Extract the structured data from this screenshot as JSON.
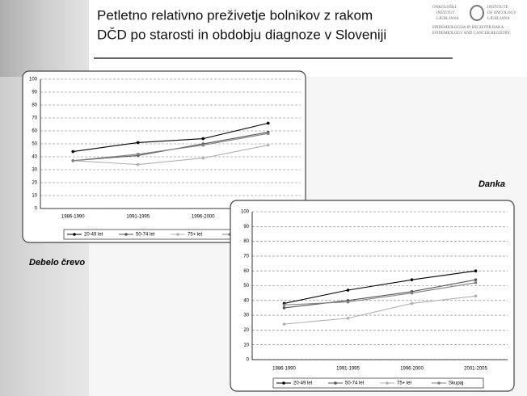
{
  "title_lines": [
    "Petletno relativno preživetje bolnikov z rakom",
    "DČD po starosti in obdobju diagnoze v Sloveniji"
  ],
  "logo": {
    "left": [
      "ONKOLOŠKI",
      "INŠTITUT",
      "LJUBLJANA"
    ],
    "right": [
      "INSTITUTE",
      "OF ONCOLOGY",
      "LJUBLJANA"
    ],
    "bottom": [
      "EPIDEMIOLOGIJA IN REGISTER RAKA",
      "EPIDEMIOLOGY AND CANCER REGISTRY"
    ]
  },
  "chart_data": [
    {
      "type": "line",
      "title": "Debelo črevo",
      "categories": [
        "1986-1990",
        "1991-1995",
        "1996-2000",
        "2001-2005"
      ],
      "series": [
        {
          "name": "20-49 let",
          "color": "#000000",
          "values": [
            44,
            51,
            54,
            66
          ]
        },
        {
          "name": "50-74 let",
          "color": "#555555",
          "values": [
            37,
            41,
            50,
            59
          ]
        },
        {
          "name": "75+ let",
          "color": "#b0b0b0",
          "values": [
            37,
            34,
            39,
            49
          ]
        },
        {
          "name": "Skupaj",
          "color": "#808080",
          "values": [
            37,
            42,
            49,
            58
          ]
        }
      ],
      "ylim": [
        0,
        100
      ],
      "yticks": [
        0,
        10,
        20,
        30,
        40,
        50,
        60,
        70,
        80,
        90,
        100
      ],
      "grid": true,
      "legend": "bottom"
    },
    {
      "type": "line",
      "title": "Danka",
      "categories": [
        "1986-1990",
        "1991-1995",
        "1996-2000",
        "2001-2005"
      ],
      "series": [
        {
          "name": "20-49 let",
          "color": "#000000",
          "values": [
            38,
            47,
            54,
            60
          ]
        },
        {
          "name": "50-74 let",
          "color": "#555555",
          "values": [
            35,
            40,
            46,
            54
          ]
        },
        {
          "name": "75+ let",
          "color": "#b0b0b0",
          "values": [
            24,
            28,
            38,
            43
          ]
        },
        {
          "name": "Skupaj",
          "color": "#808080",
          "values": [
            37,
            39,
            45,
            52
          ]
        }
      ],
      "ylim": [
        0,
        100
      ],
      "yticks": [
        0,
        10,
        20,
        30,
        40,
        50,
        60,
        70,
        80,
        90,
        100
      ],
      "grid": true,
      "legend": "bottom"
    }
  ]
}
